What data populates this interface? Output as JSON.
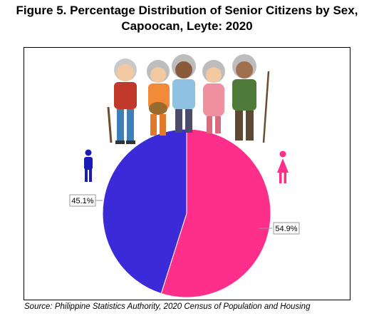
{
  "title_line1": "Figure 5. Percentage Distribution of Senior Citizens by Sex,",
  "title_line2": "Capoocan, Leyte: 2020",
  "source": "Source: Philippine Statistics Authority, 2020 Census of Population and Housing",
  "icons": {
    "male": "male-person-icon",
    "female": "female-person-icon",
    "illustration": "senior-citizens-illustration"
  },
  "colors": {
    "male": "#3a2ad8",
    "female": "#fd2f8a"
  },
  "chart_data": {
    "type": "pie",
    "title": "Figure 5. Percentage Distribution of Senior Citizens by Sex, Capoocan, Leyte: 2020",
    "slices": [
      {
        "label": "",
        "value": 54.9,
        "data_label": "54.9%",
        "color": "#fd2f8a"
      },
      {
        "label": "",
        "value": 45.1,
        "data_label": "45.1%",
        "color": "#3a2ad8"
      }
    ],
    "legend": "none"
  }
}
